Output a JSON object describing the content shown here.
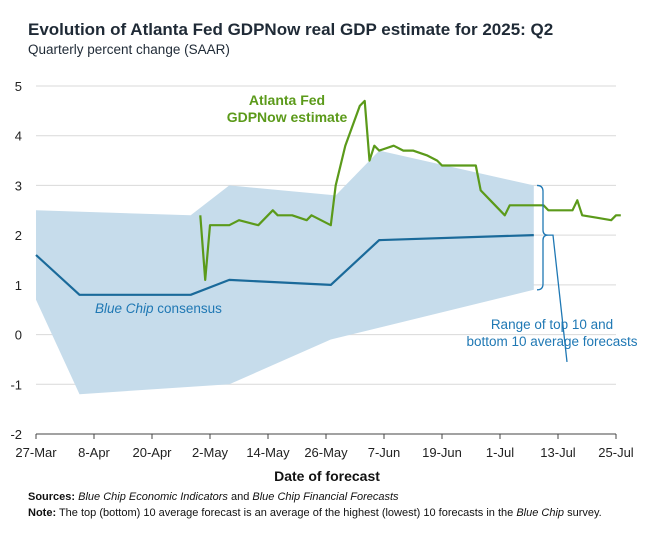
{
  "title": "Evolution of Atlanta Fed GDPNow real GDP estimate for 2025: Q2",
  "subtitle": "Quarterly percent change (SAAR)",
  "chart_data": {
    "type": "line",
    "xlabel": "Date of forecast",
    "ylabel": "Quarterly percent change (SAAR)",
    "ylim": [
      -2,
      5
    ],
    "yticks": [
      -2,
      -1,
      0,
      1,
      2,
      3,
      4,
      5
    ],
    "xlim_days": [
      0,
      120
    ],
    "xticks": [
      {
        "label": "27-Mar",
        "day": 0
      },
      {
        "label": "8-Apr",
        "day": 12
      },
      {
        "label": "20-Apr",
        "day": 24
      },
      {
        "label": "2-May",
        "day": 36
      },
      {
        "label": "14-May",
        "day": 48
      },
      {
        "label": "26-May",
        "day": 60
      },
      {
        "label": "7-Jun",
        "day": 72
      },
      {
        "label": "19-Jun",
        "day": 84
      },
      {
        "label": "1-Jul",
        "day": 96
      },
      {
        "label": "13-Jul",
        "day": 108
      },
      {
        "label": "25-Jul",
        "day": 120
      }
    ],
    "series": [
      {
        "name": "Atlanta Fed GDPNow estimate",
        "color": "#5b9a1a",
        "points": [
          [
            34,
            2.4
          ],
          [
            35,
            1.1
          ],
          [
            36,
            2.2
          ],
          [
            40,
            2.2
          ],
          [
            42,
            2.3
          ],
          [
            46,
            2.2
          ],
          [
            49,
            2.5
          ],
          [
            50,
            2.4
          ],
          [
            53,
            2.4
          ],
          [
            56,
            2.3
          ],
          [
            57,
            2.4
          ],
          [
            61,
            2.2
          ],
          [
            62,
            3.0
          ],
          [
            64,
            3.8
          ],
          [
            67,
            4.6
          ],
          [
            68,
            4.7
          ],
          [
            69,
            3.5
          ],
          [
            70,
            3.8
          ],
          [
            71,
            3.7
          ],
          [
            74,
            3.8
          ],
          [
            76,
            3.7
          ],
          [
            78,
            3.7
          ],
          [
            81,
            3.6
          ],
          [
            83,
            3.5
          ],
          [
            84,
            3.4
          ],
          [
            91,
            3.4
          ],
          [
            92,
            2.9
          ],
          [
            94,
            2.7
          ],
          [
            97,
            2.4
          ],
          [
            98,
            2.6
          ],
          [
            105,
            2.6
          ],
          [
            106,
            2.5
          ],
          [
            111,
            2.5
          ],
          [
            112,
            2.7
          ],
          [
            113,
            2.4
          ],
          [
            116,
            2.35
          ],
          [
            119,
            2.3
          ],
          [
            120,
            2.4
          ],
          [
            121,
            2.4
          ]
        ]
      },
      {
        "name": "Blue Chip consensus",
        "color": "#1a6a9a",
        "points": [
          [
            0,
            1.6
          ],
          [
            9,
            0.8
          ],
          [
            32,
            0.8
          ],
          [
            40,
            1.1
          ],
          [
            61,
            1.0
          ],
          [
            71,
            1.9
          ],
          [
            103,
            2.0
          ]
        ]
      }
    ],
    "band": {
      "name": "Range of top 10 and bottom 10 average forecasts",
      "color": "#c6dceb",
      "upper": [
        [
          0,
          2.5
        ],
        [
          32,
          2.4
        ],
        [
          40,
          3.0
        ],
        [
          62,
          2.8
        ],
        [
          71,
          3.7
        ],
        [
          103,
          3.0
        ]
      ],
      "lower": [
        [
          103,
          0.9
        ],
        [
          61,
          -0.1
        ],
        [
          40,
          -1.0
        ],
        [
          9,
          -1.2
        ],
        [
          0,
          0.7
        ]
      ]
    },
    "annotations": {
      "gdpnow_line1": "Atlanta Fed",
      "gdpnow_line2": "GDPNow estimate",
      "bluechip_italic": "Blue Chip",
      "bluechip_rest": " consensus",
      "range_line1": "Range of top 10 and",
      "range_line2": "bottom 10 average forecasts"
    }
  },
  "footer": {
    "sources_label": "Sources:",
    "sources_italic1": "Blue Chip Economic Indicators",
    "sources_and": " and ",
    "sources_italic2": "Blue Chip Financial Forecasts",
    "note_label": "Note:",
    "note_text": " The top (bottom) 10 average forecast is an average of the highest (lowest) 10 forecasts in the ",
    "note_italic": "Blue Chip",
    "note_end": " survey."
  }
}
